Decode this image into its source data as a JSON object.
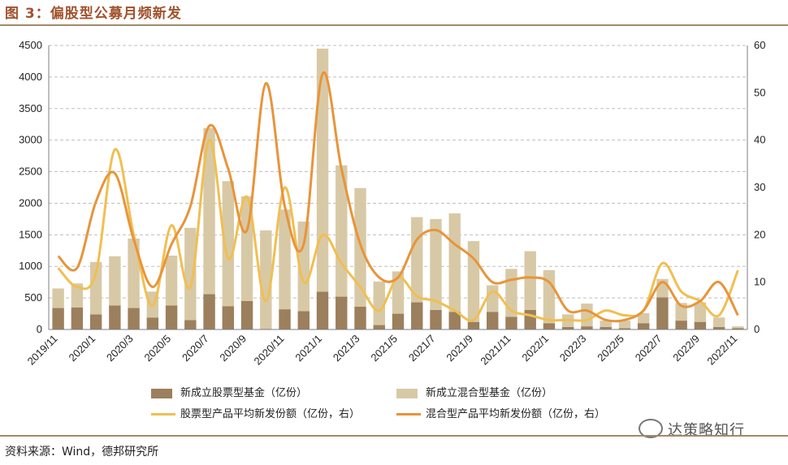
{
  "figure": {
    "title": "图 3：偏股型公募月频新发",
    "source": "资料来源：Wind，德邦研究所",
    "watermark": "达策略知行"
  },
  "colors": {
    "stock_bar": "#9c7f5c",
    "mixed_bar": "#d8c9a6",
    "stock_line": "#f0bf52",
    "mixed_line": "#e8943a",
    "grid": "#bfbfbf",
    "axis": "#7f7f7f"
  },
  "chart_data": {
    "type": "bar",
    "title": "",
    "categories": [
      "2019/11",
      "2019/12",
      "2020/1",
      "2020/2",
      "2020/3",
      "2020/4",
      "2020/5",
      "2020/6",
      "2020/7",
      "2020/8",
      "2020/9",
      "2020/10",
      "2020/11",
      "2020/12",
      "2021/1",
      "2021/2",
      "2021/3",
      "2021/4",
      "2021/5",
      "2021/6",
      "2021/7",
      "2021/8",
      "2021/9",
      "2021/10",
      "2021/11",
      "2021/12",
      "2022/1",
      "2022/2",
      "2022/3",
      "2022/4",
      "2022/5",
      "2022/6",
      "2022/7",
      "2022/8",
      "2022/9",
      "2022/10",
      "2022/11"
    ],
    "x_tick_labels": [
      "2019/11",
      "2020/1",
      "2020/3",
      "2020/5",
      "2020/7",
      "2020/9",
      "2020/11",
      "2021/1",
      "2021/3",
      "2021/5",
      "2021/7",
      "2021/9",
      "2021/11",
      "2022/1",
      "2022/3",
      "2022/5",
      "2022/7",
      "2022/9",
      "2022/11"
    ],
    "left_axis": {
      "ylim": [
        0,
        4500
      ],
      "ticks": [
        "0",
        "500",
        "1000",
        "1500",
        "2000",
        "2500",
        "3000",
        "3500",
        "4000",
        "4500"
      ]
    },
    "right_axis": {
      "ylim": [
        0,
        60
      ],
      "ticks": [
        "0",
        "10",
        "20",
        "30",
        "40",
        "50",
        "60"
      ]
    },
    "series": [
      {
        "name": "新成立股票型基金（亿份）",
        "type": "bar",
        "axis": "left",
        "stacked": true,
        "values": [
          340,
          350,
          240,
          380,
          340,
          190,
          380,
          150,
          560,
          370,
          450,
          10,
          320,
          290,
          600,
          520,
          360,
          70,
          250,
          430,
          310,
          280,
          120,
          280,
          200,
          310,
          100,
          40,
          50,
          40,
          20,
          100,
          510,
          140,
          120,
          40,
          20
        ]
      },
      {
        "name": "新成立混合型基金（亿份）",
        "type": "bar",
        "axis": "left",
        "stacked": true,
        "values": [
          310,
          380,
          830,
          780,
          1100,
          410,
          790,
          1460,
          2630,
          1980,
          1660,
          1560,
          1580,
          1420,
          3850,
          2080,
          1880,
          690,
          670,
          1350,
          1440,
          1560,
          1280,
          420,
          760,
          930,
          840,
          200,
          360,
          100,
          120,
          160,
          290,
          280,
          310,
          150,
          30
        ]
      },
      {
        "name": "股票型产品平均新发份额（亿份，右）",
        "type": "line",
        "axis": "right",
        "values": [
          13,
          9,
          12,
          38,
          20,
          5,
          22,
          9,
          40,
          15,
          28,
          6,
          30,
          10,
          20,
          14,
          9,
          4,
          11,
          7,
          6,
          4,
          2,
          8,
          4,
          3,
          2,
          2,
          2,
          4,
          3,
          4,
          14,
          8,
          6,
          3,
          12.5
        ]
      },
      {
        "name": "混合型产品平均新发份额（亿份，右）",
        "type": "line",
        "axis": "right",
        "values": [
          15.5,
          13,
          27,
          33,
          19,
          9,
          18,
          26,
          43,
          34,
          21,
          52,
          26,
          18,
          54,
          34,
          18,
          11,
          11,
          19,
          21,
          18,
          15,
          10,
          10.5,
          11,
          10,
          4,
          4,
          2,
          2,
          4,
          10,
          5,
          6,
          10,
          3
        ]
      }
    ]
  }
}
